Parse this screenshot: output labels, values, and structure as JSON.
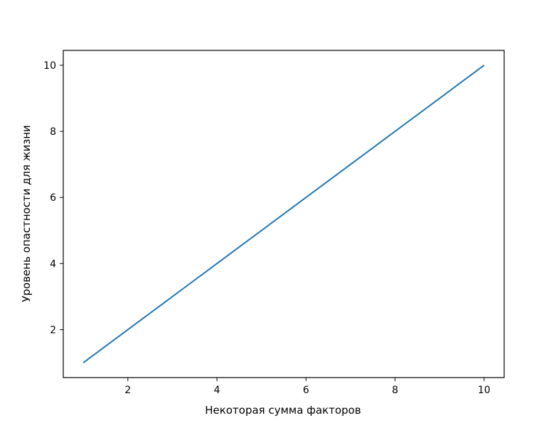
{
  "chart_data": {
    "type": "line",
    "title": "",
    "xlabel": "Некоторая сумма факторов",
    "ylabel": "Уровень опастности для жизни",
    "xlim": [
      0.55,
      10.45
    ],
    "ylim": [
      0.55,
      10.45
    ],
    "x_ticks": [
      2,
      4,
      6,
      8,
      10
    ],
    "y_ticks": [
      2,
      4,
      6,
      8,
      10
    ],
    "grid": false,
    "series": [
      {
        "x": [
          1,
          2,
          3,
          4,
          5,
          6,
          7,
          8,
          9,
          10
        ],
        "y": [
          1,
          2,
          3,
          4,
          5,
          6,
          7,
          8,
          9,
          10
        ],
        "color": "#1f77b4"
      }
    ]
  }
}
